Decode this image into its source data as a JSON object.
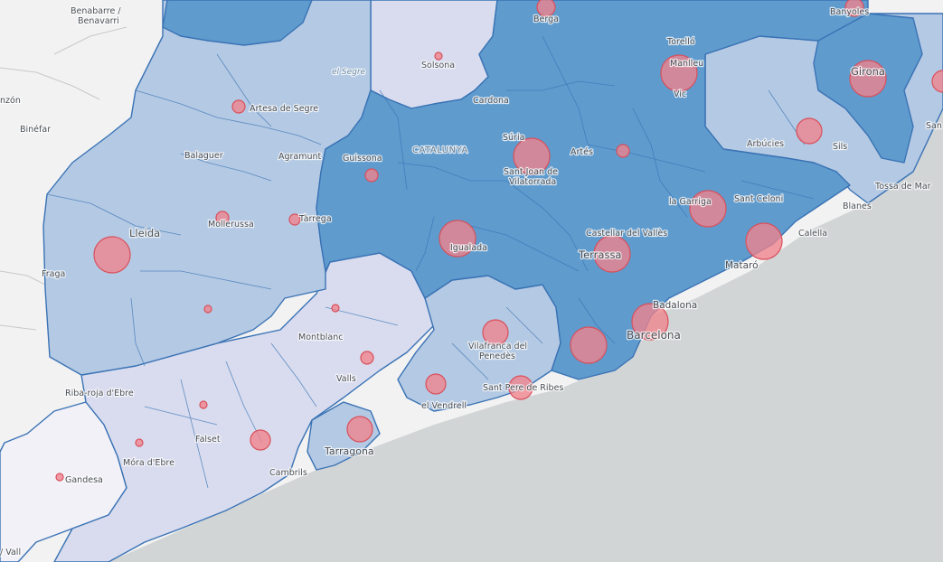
{
  "map": {
    "colors": {
      "sea": "#d2d5d6",
      "land_outside": "#f2f2f2",
      "level_1": "#f3f1f8",
      "level_2": "#d8dcee",
      "level_3": "#b4c9e3",
      "level_4": "#5f9bcd",
      "circle": "#f0838c"
    },
    "region_label": "CATALUNYA",
    "river_label": "el Segre",
    "places": [
      {
        "id": "benabarre",
        "name": "Benabarre /"
      },
      {
        "id": "benavarri",
        "name": "Benavarri"
      },
      {
        "id": "monzon",
        "name": "nzón"
      },
      {
        "id": "binefar",
        "name": "Binéfar"
      },
      {
        "id": "fraga",
        "name": "Fraga"
      },
      {
        "id": "vall",
        "name": "/ Vall"
      },
      {
        "id": "berga",
        "name": "Berga"
      },
      {
        "id": "banyoles",
        "name": "Banyoles"
      },
      {
        "id": "solsona",
        "name": "Solsona"
      },
      {
        "id": "torello",
        "name": "Torelló"
      },
      {
        "id": "manlleu",
        "name": "Manlleu"
      },
      {
        "id": "vic",
        "name": "Vic"
      },
      {
        "id": "girona",
        "name": "Girona"
      },
      {
        "id": "sant",
        "name": "San"
      },
      {
        "id": "artesa",
        "name": "Artesa de Segre"
      },
      {
        "id": "cardona",
        "name": "Cardona"
      },
      {
        "id": "suria",
        "name": "Súria"
      },
      {
        "id": "sant_joan",
        "name": "Sant Joan de"
      },
      {
        "id": "vilatorrada",
        "name": "Vilatorrada"
      },
      {
        "id": "artes",
        "name": "Artés"
      },
      {
        "id": "arbucies",
        "name": "Arbúcies"
      },
      {
        "id": "sils",
        "name": "Sils"
      },
      {
        "id": "balaguer",
        "name": "Balaguer"
      },
      {
        "id": "agramunt",
        "name": "Agramunt"
      },
      {
        "id": "guissona",
        "name": "Guissona"
      },
      {
        "id": "tossa",
        "name": "Tossa de Mar"
      },
      {
        "id": "blanes",
        "name": "Blanes"
      },
      {
        "id": "lagarriga",
        "name": "la Garriga"
      },
      {
        "id": "santceloni",
        "name": "Sant Celoni"
      },
      {
        "id": "lleida",
        "name": "Lleida"
      },
      {
        "id": "mollerussa",
        "name": "Mollerussa"
      },
      {
        "id": "tarrega",
        "name": "Tàrrega"
      },
      {
        "id": "igualada",
        "name": "Igualada"
      },
      {
        "id": "castellar",
        "name": "Castellar del Vallès"
      },
      {
        "id": "terrassa",
        "name": "Terrassa"
      },
      {
        "id": "calella",
        "name": "Calella"
      },
      {
        "id": "mataro",
        "name": "Mataró"
      },
      {
        "id": "badalona",
        "name": "Badalona"
      },
      {
        "id": "barcelona",
        "name": "Barcelona"
      },
      {
        "id": "montblanc",
        "name": "Montblanc"
      },
      {
        "id": "vilafranca",
        "name": "Vilafranca del"
      },
      {
        "id": "penedes",
        "name": "Penedès"
      },
      {
        "id": "valls",
        "name": "Valls"
      },
      {
        "id": "santpere",
        "name": "Sant Pere de Ribes"
      },
      {
        "id": "ribaroja",
        "name": "Riba-roja d'Ebre"
      },
      {
        "id": "elvendrell",
        "name": "el Vendrell"
      },
      {
        "id": "falset",
        "name": "Falset"
      },
      {
        "id": "tarragona",
        "name": "Tarragona"
      },
      {
        "id": "mora",
        "name": "Móra d'Ebre"
      },
      {
        "id": "cambrils",
        "name": "Cambrils"
      },
      {
        "id": "gandesa",
        "name": "Gandesa"
      }
    ]
  }
}
